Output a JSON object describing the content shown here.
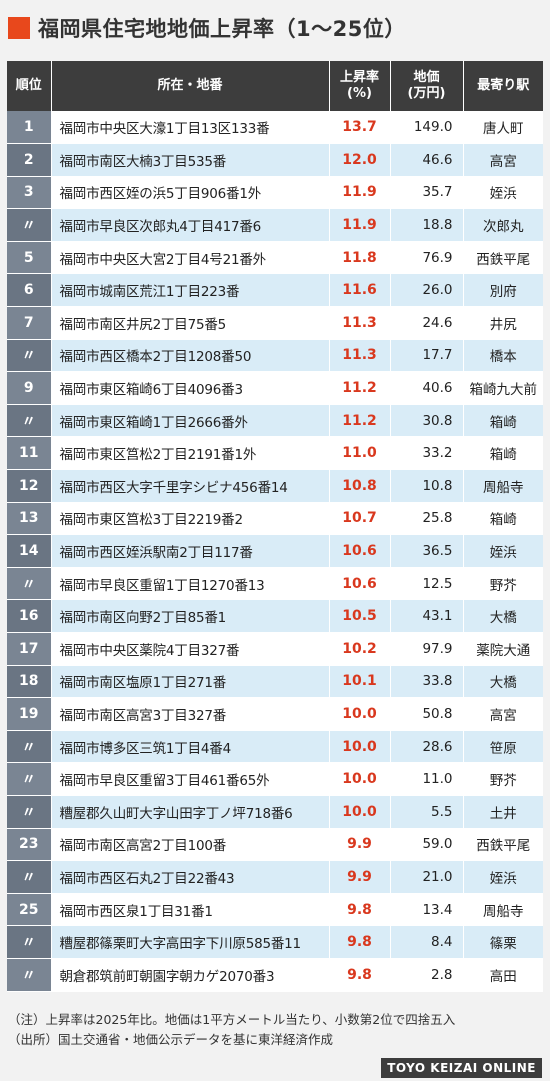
{
  "title": "福岡県住宅地地価上昇率（1〜25位）",
  "headers": {
    "rank": "順位",
    "location": "所在・地番",
    "rate_line1": "上昇率",
    "rate_line2": "(%)",
    "price_line1": "地価",
    "price_line2": "(万円)",
    "station": "最寄り駅"
  },
  "colors": {
    "accent": "#e8481c",
    "header_bg": "#3d3d3d",
    "rate_text": "#d9381e",
    "row_alt": "#d9ecf7",
    "rank_bg": "#7a8593"
  },
  "chart_data": {
    "type": "table",
    "columns": [
      "順位",
      "所在・地番",
      "上昇率(%)",
      "地価(万円)",
      "最寄り駅"
    ],
    "rows": [
      {
        "rank": "1",
        "location": "福岡市中央区大濠1丁目13区133番",
        "rate": "13.7",
        "price": "149.0",
        "station": "唐人町"
      },
      {
        "rank": "2",
        "location": "福岡市南区大楠3丁目535番",
        "rate": "12.0",
        "price": "46.6",
        "station": "高宮"
      },
      {
        "rank": "3",
        "location": "福岡市西区姪の浜5丁目906番1外",
        "rate": "11.9",
        "price": "35.7",
        "station": "姪浜"
      },
      {
        "rank": "〃",
        "location": "福岡市早良区次郎丸4丁目417番6",
        "rate": "11.9",
        "price": "18.8",
        "station": "次郎丸"
      },
      {
        "rank": "5",
        "location": "福岡市中央区大宮2丁目4号21番外",
        "rate": "11.8",
        "price": "76.9",
        "station": "西鉄平尾"
      },
      {
        "rank": "6",
        "location": "福岡市城南区荒江1丁目223番",
        "rate": "11.6",
        "price": "26.0",
        "station": "別府"
      },
      {
        "rank": "7",
        "location": "福岡市南区井尻2丁目75番5",
        "rate": "11.3",
        "price": "24.6",
        "station": "井尻"
      },
      {
        "rank": "〃",
        "location": "福岡市西区橋本2丁目1208番50",
        "rate": "11.3",
        "price": "17.7",
        "station": "橋本"
      },
      {
        "rank": "9",
        "location": "福岡市東区箱崎6丁目4096番3",
        "rate": "11.2",
        "price": "40.6",
        "station": "箱崎九大前"
      },
      {
        "rank": "〃",
        "location": "福岡市東区箱崎1丁目2666番外",
        "rate": "11.2",
        "price": "30.8",
        "station": "箱崎"
      },
      {
        "rank": "11",
        "location": "福岡市東区筥松2丁目2191番1外",
        "rate": "11.0",
        "price": "33.2",
        "station": "箱崎"
      },
      {
        "rank": "12",
        "location": "福岡市西区大字千里字シビナ456番14",
        "rate": "10.8",
        "price": "10.8",
        "station": "周船寺"
      },
      {
        "rank": "13",
        "location": "福岡市東区筥松3丁目2219番2",
        "rate": "10.7",
        "price": "25.8",
        "station": "箱崎"
      },
      {
        "rank": "14",
        "location": "福岡市西区姪浜駅南2丁目117番",
        "rate": "10.6",
        "price": "36.5",
        "station": "姪浜"
      },
      {
        "rank": "〃",
        "location": "福岡市早良区重留1丁目1270番13",
        "rate": "10.6",
        "price": "12.5",
        "station": "野芥"
      },
      {
        "rank": "16",
        "location": "福岡市南区向野2丁目85番1",
        "rate": "10.5",
        "price": "43.1",
        "station": "大橋"
      },
      {
        "rank": "17",
        "location": "福岡市中央区薬院4丁目327番",
        "rate": "10.2",
        "price": "97.9",
        "station": "薬院大通"
      },
      {
        "rank": "18",
        "location": "福岡市南区塩原1丁目271番",
        "rate": "10.1",
        "price": "33.8",
        "station": "大橋"
      },
      {
        "rank": "19",
        "location": "福岡市南区高宮3丁目327番",
        "rate": "10.0",
        "price": "50.8",
        "station": "高宮"
      },
      {
        "rank": "〃",
        "location": "福岡市博多区三筑1丁目4番4",
        "rate": "10.0",
        "price": "28.6",
        "station": "笹原"
      },
      {
        "rank": "〃",
        "location": "福岡市早良区重留3丁目461番65外",
        "rate": "10.0",
        "price": "11.0",
        "station": "野芥"
      },
      {
        "rank": "〃",
        "location": "糟屋郡久山町大字山田字丁ノ坪718番6",
        "rate": "10.0",
        "price": "5.5",
        "station": "土井"
      },
      {
        "rank": "23",
        "location": "福岡市南区高宮2丁目100番",
        "rate": "9.9",
        "price": "59.0",
        "station": "西鉄平尾"
      },
      {
        "rank": "〃",
        "location": "福岡市西区石丸2丁目22番43",
        "rate": "9.9",
        "price": "21.0",
        "station": "姪浜"
      },
      {
        "rank": "25",
        "location": "福岡市西区泉1丁目31番1",
        "rate": "9.8",
        "price": "13.4",
        "station": "周船寺"
      },
      {
        "rank": "〃",
        "location": "糟屋郡篠栗町大字高田字下川原585番11",
        "rate": "9.8",
        "price": "8.4",
        "station": "篠栗"
      },
      {
        "rank": "〃",
        "location": "朝倉郡筑前町朝園字朝カゲ2070番3",
        "rate": "9.8",
        "price": "2.8",
        "station": "高田"
      }
    ]
  },
  "notes": {
    "note1": "（注）上昇率は2025年比。地価は1平方メートル当たり、小数第2位で四捨五入",
    "note2": "（出所）国土交通省・地価公示データを基に東洋経済作成"
  },
  "brand": "TOYO KEIZAI ONLINE"
}
